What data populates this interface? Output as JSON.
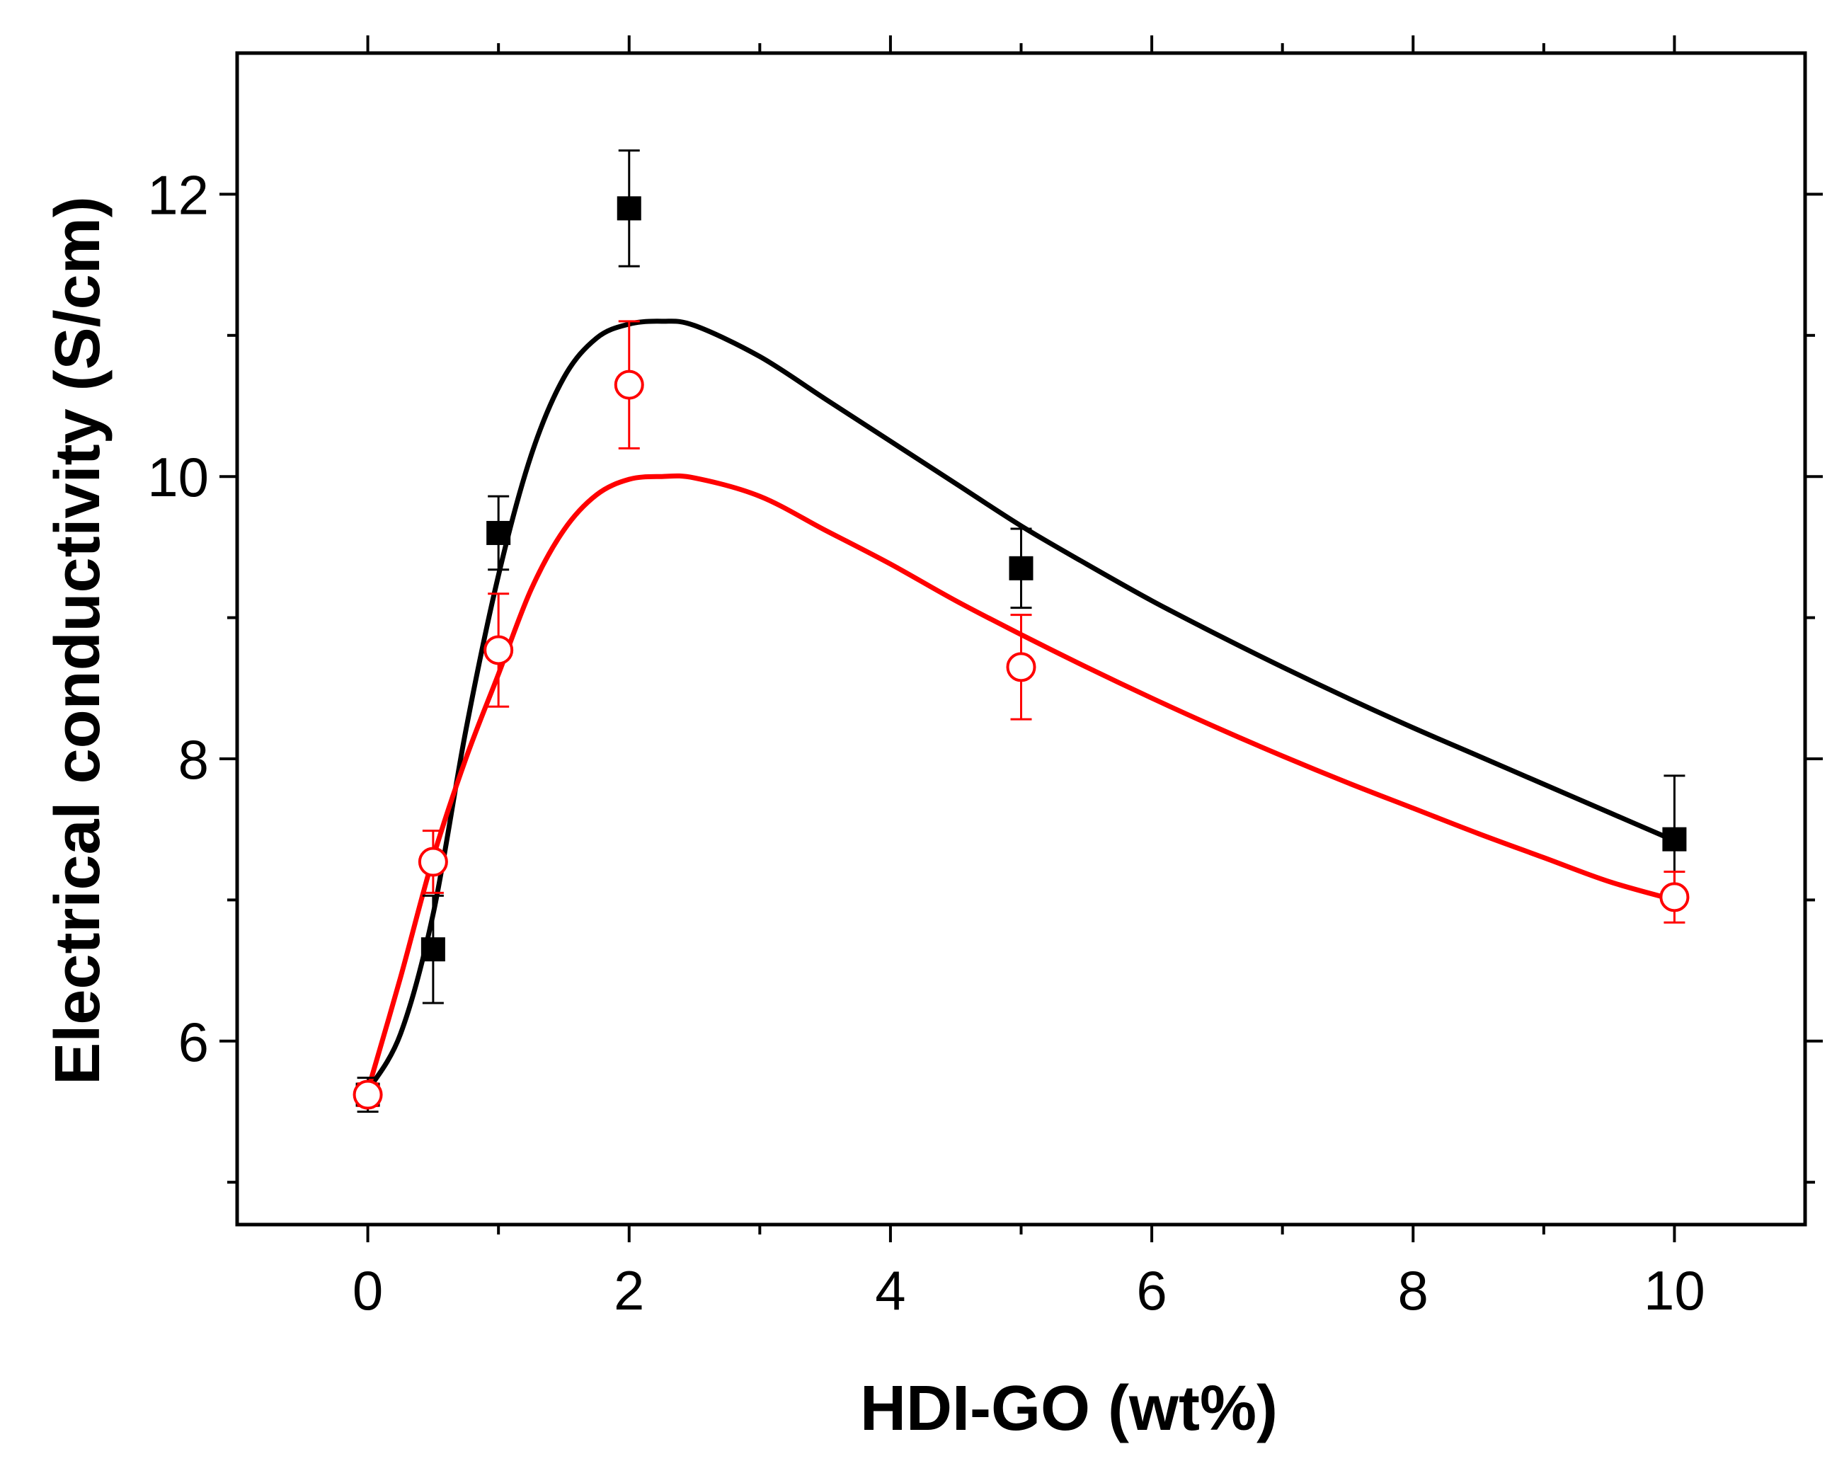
{
  "chart_data": {
    "type": "scatter",
    "title": "",
    "xlabel": "HDI-GO (wt%)",
    "ylabel": "Electrical conductivity (S/cm)",
    "xlim": [
      -1,
      11
    ],
    "ylim": [
      4.7,
      13
    ],
    "xticks": [
      0,
      2,
      4,
      6,
      8,
      10
    ],
    "xtick_labels": [
      "0",
      "2",
      "4",
      "6",
      "8",
      "10"
    ],
    "xminor": [
      1,
      3,
      5,
      7,
      9
    ],
    "yticks": [
      6,
      8,
      10,
      12
    ],
    "ytick_labels": [
      "6",
      "8",
      "10",
      "12"
    ],
    "yminor": [
      5,
      7,
      9,
      11
    ],
    "grid": false,
    "series": [
      {
        "name": "black squares",
        "marker": "filled-square",
        "color": "#000000",
        "points": [
          {
            "x": 0,
            "y": 5.62,
            "err": 0.12
          },
          {
            "x": 0.5,
            "y": 6.65,
            "err": 0.38
          },
          {
            "x": 1,
            "y": 9.6,
            "err": 0.26
          },
          {
            "x": 2,
            "y": 11.9,
            "err": 0.41
          },
          {
            "x": 5,
            "y": 9.35,
            "err": 0.28
          },
          {
            "x": 10,
            "y": 7.43,
            "err": 0.45
          }
        ],
        "fit": {
          "x": [
            0,
            0.25,
            0.5,
            0.75,
            1,
            1.25,
            1.5,
            1.75,
            2,
            2.25,
            2.5,
            3,
            3.5,
            4,
            4.5,
            5,
            5.5,
            6,
            6.5,
            7,
            7.5,
            8,
            8.5,
            9,
            9.5,
            10
          ],
          "y": [
            5.65,
            6.05,
            6.9,
            8.2,
            9.3,
            10.15,
            10.7,
            10.98,
            11.08,
            11.1,
            11.07,
            10.85,
            10.55,
            10.25,
            9.95,
            9.65,
            9.38,
            9.12,
            8.88,
            8.65,
            8.43,
            8.22,
            8.02,
            7.82,
            7.62,
            7.42
          ]
        }
      },
      {
        "name": "red circles",
        "marker": "open-circle",
        "color": "#ff0000",
        "points": [
          {
            "x": 0,
            "y": 5.62,
            "err": 0.08
          },
          {
            "x": 0.5,
            "y": 7.27,
            "err": 0.22
          },
          {
            "x": 1,
            "y": 8.77,
            "err": 0.4
          },
          {
            "x": 2,
            "y": 10.65,
            "err": 0.45
          },
          {
            "x": 5,
            "y": 8.65,
            "err": 0.37
          },
          {
            "x": 10,
            "y": 7.02,
            "err": 0.18
          }
        ],
        "fit": {
          "x": [
            0,
            0.25,
            0.5,
            0.75,
            1,
            1.25,
            1.5,
            1.75,
            2,
            2.25,
            2.5,
            3,
            3.5,
            4,
            4.5,
            5,
            5.5,
            6,
            6.5,
            7,
            7.5,
            8,
            8.5,
            9,
            9.5,
            10
          ],
          "y": [
            5.65,
            6.45,
            7.3,
            8.0,
            8.6,
            9.2,
            9.62,
            9.87,
            9.98,
            10.0,
            9.99,
            9.86,
            9.62,
            9.38,
            9.12,
            8.88,
            8.65,
            8.43,
            8.22,
            8.02,
            7.83,
            7.65,
            7.47,
            7.3,
            7.13,
            7.0
          ]
        }
      }
    ]
  }
}
